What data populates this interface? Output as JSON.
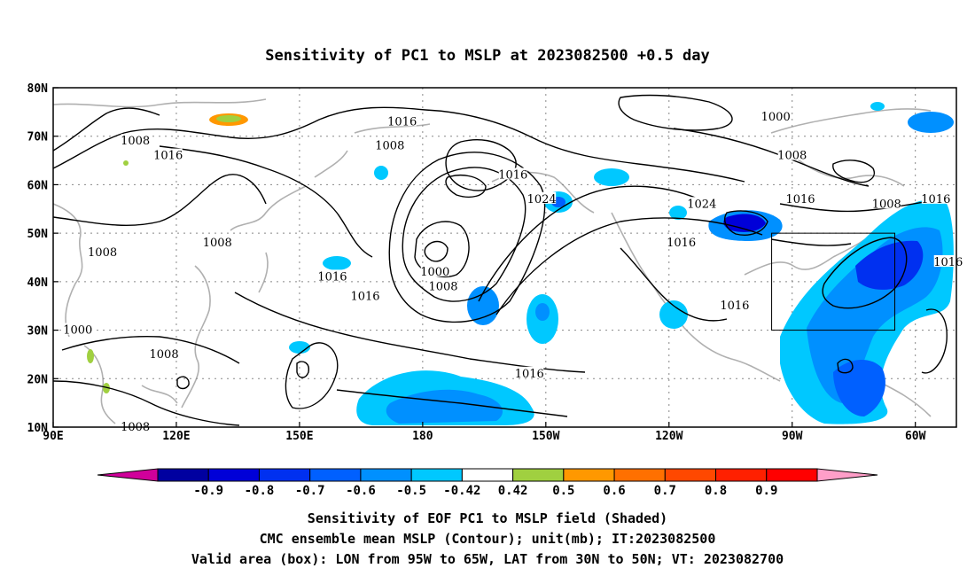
{
  "title": "Sensitivity of PC1 to MSLP at 2023082500 +0.5 day",
  "map": {
    "lon_ticks": [
      "90E",
      "120E",
      "150E",
      "180",
      "150W",
      "120W",
      "90W",
      "60W"
    ],
    "lat_ticks": [
      "80N",
      "70N",
      "60N",
      "50N",
      "40N",
      "30N",
      "20N",
      "10N"
    ],
    "lon_range": [
      90,
      310
    ],
    "lat_range": [
      10,
      80
    ],
    "grid": true,
    "contour_labels": [
      {
        "text": "1016",
        "lon": 175,
        "lat": 73
      },
      {
        "text": "1008",
        "lon": 110,
        "lat": 69
      },
      {
        "text": "1016",
        "lon": 118,
        "lat": 66
      },
      {
        "text": "1008",
        "lon": 172,
        "lat": 68
      },
      {
        "text": "1000",
        "lon": 266,
        "lat": 74
      },
      {
        "text": "1008",
        "lon": 270,
        "lat": 66
      },
      {
        "text": "1016",
        "lon": 202,
        "lat": 62
      },
      {
        "text": "1024",
        "lon": 209,
        "lat": 57
      },
      {
        "text": "1024",
        "lon": 248,
        "lat": 56
      },
      {
        "text": "1016",
        "lon": 272,
        "lat": 57
      },
      {
        "text": "1008",
        "lon": 293,
        "lat": 56
      },
      {
        "text": "1016",
        "lon": 305,
        "lat": 57
      },
      {
        "text": "1008",
        "lon": 130,
        "lat": 48
      },
      {
        "text": "1008",
        "lon": 102,
        "lat": 46
      },
      {
        "text": "1016",
        "lon": 243,
        "lat": 48
      },
      {
        "text": "1016",
        "lon": 308,
        "lat": 44
      },
      {
        "text": "1016",
        "lon": 158,
        "lat": 41
      },
      {
        "text": "1000",
        "lon": 183,
        "lat": 42
      },
      {
        "text": "1008",
        "lon": 185,
        "lat": 39
      },
      {
        "text": "1016",
        "lon": 166,
        "lat": 37
      },
      {
        "text": "1016",
        "lon": 256,
        "lat": 35
      },
      {
        "text": "1000",
        "lon": 96,
        "lat": 30
      },
      {
        "text": "1008",
        "lon": 117,
        "lat": 25
      },
      {
        "text": "1016",
        "lon": 206,
        "lat": 21
      },
      {
        "text": "1008",
        "lon": 110,
        "lat": 10
      }
    ],
    "valid_box": {
      "lon": [
        265,
        295
      ],
      "lat": [
        30,
        50
      ]
    }
  },
  "colorbar": {
    "labels": [
      "-0.9",
      "-0.8",
      "-0.7",
      "-0.6",
      "-0.5",
      "-0.42",
      "0.42",
      "0.5",
      "0.6",
      "0.7",
      "0.8",
      "0.9"
    ],
    "colors": [
      "#d0009a",
      "#0000a0",
      "#0000d8",
      "#0030f0",
      "#0060ff",
      "#0090ff",
      "#00c8ff",
      "#ffffff",
      "#a0d040",
      "#ff9800",
      "#ff7000",
      "#ff4800",
      "#ff2000",
      "#ff0000",
      "#ff9ec8"
    ]
  },
  "captions": [
    "Sensitivity of EOF PC1 to MSLP field (Shaded)",
    "CMC ensemble mean MSLP (Contour); unit(mb); IT:2023082500",
    "Valid area (box): LON from 95W to 65W, LAT from 30N to 50N; VT: 2023082700"
  ]
}
